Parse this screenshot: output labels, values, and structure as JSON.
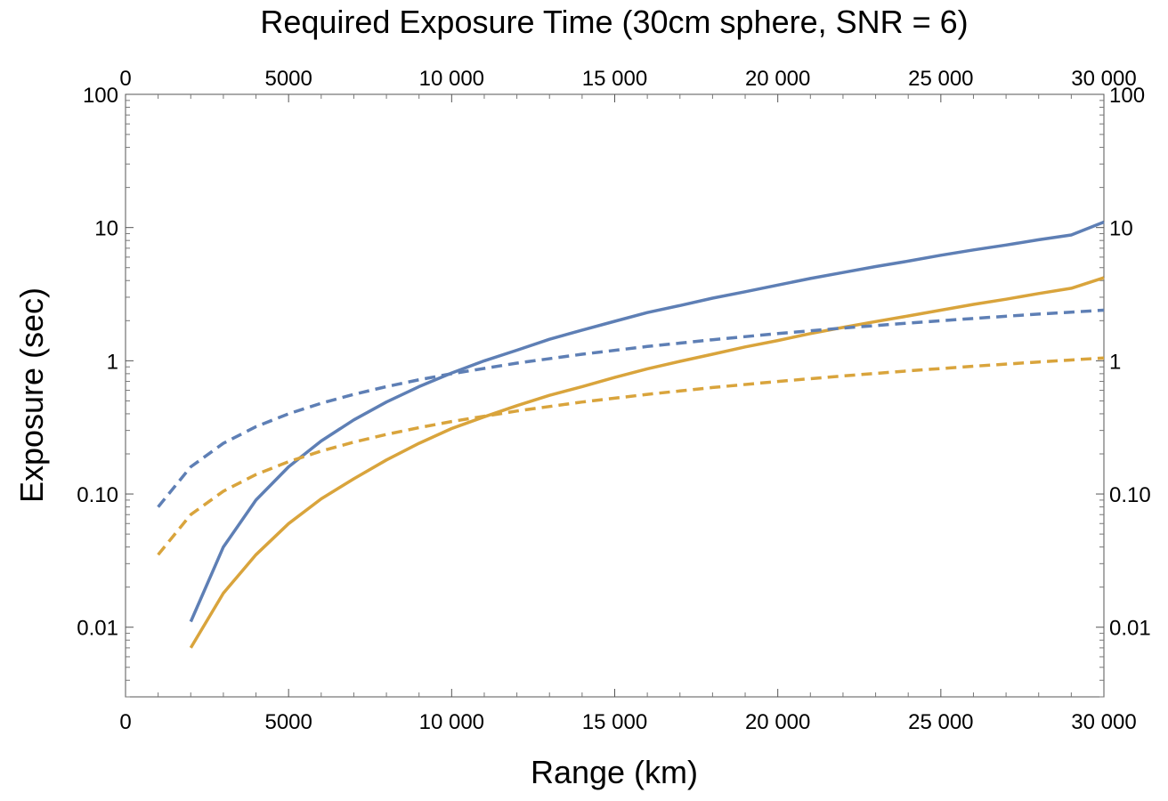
{
  "chart_data": {
    "type": "line",
    "title": "Required Exposure Time (30cm sphere, SNR = 6)",
    "xlabel": "Range (km)",
    "ylabel": "Exposure (sec)",
    "xlim": [
      0,
      30000
    ],
    "ylim": [
      0.003,
      100
    ],
    "yscale": "log",
    "grid": false,
    "frame_ticks_all_sides": true,
    "x_ticks": [
      {
        "value": 0,
        "label": "0"
      },
      {
        "value": 5000,
        "label": "5000"
      },
      {
        "value": 10000,
        "label": "10 000"
      },
      {
        "value": 15000,
        "label": "15 000"
      },
      {
        "value": 20000,
        "label": "20 000"
      },
      {
        "value": 25000,
        "label": "25 000"
      },
      {
        "value": 30000,
        "label": "30 000"
      }
    ],
    "y_ticks": [
      {
        "value": 0.01,
        "label": "0.01"
      },
      {
        "value": 0.1,
        "label": "0.10"
      },
      {
        "value": 1,
        "label": "1"
      },
      {
        "value": 10,
        "label": "10"
      },
      {
        "value": 100,
        "label": "100"
      }
    ],
    "series": [
      {
        "color": "#5e7fb5",
        "dash": "solid",
        "x": [
          2000,
          3000,
          4000,
          5000,
          6000,
          7000,
          8000,
          9000,
          10000,
          11000,
          12000,
          13000,
          14000,
          15000,
          16000,
          17000,
          18000,
          19000,
          20000,
          21000,
          22000,
          23000,
          24000,
          25000,
          26000,
          27000,
          28000,
          29000,
          30000
        ],
        "y": [
          0.011,
          0.04,
          0.09,
          0.16,
          0.25,
          0.36,
          0.49,
          0.64,
          0.81,
          1.0,
          1.2,
          1.45,
          1.7,
          1.98,
          2.3,
          2.6,
          2.95,
          3.3,
          3.7,
          4.15,
          4.6,
          5.1,
          5.6,
          6.2,
          6.8,
          7.4,
          8.1,
          8.8,
          11.0
        ]
      },
      {
        "color": "#d9a43c",
        "dash": "solid",
        "x": [
          2000,
          3000,
          4000,
          5000,
          6000,
          7000,
          8000,
          9000,
          10000,
          11000,
          12000,
          13000,
          14000,
          15000,
          16000,
          17000,
          18000,
          19000,
          20000,
          21000,
          22000,
          23000,
          24000,
          25000,
          26000,
          27000,
          28000,
          29000,
          30000
        ],
        "y": [
          0.007,
          0.018,
          0.035,
          0.06,
          0.092,
          0.13,
          0.18,
          0.24,
          0.31,
          0.38,
          0.46,
          0.55,
          0.64,
          0.75,
          0.87,
          0.99,
          1.12,
          1.27,
          1.42,
          1.6,
          1.78,
          1.97,
          2.17,
          2.4,
          2.65,
          2.9,
          3.2,
          3.5,
          4.2
        ]
      },
      {
        "color": "#5e7fb5",
        "dash": "dashed",
        "x": [
          1000,
          2000,
          3000,
          4000,
          5000,
          6000,
          7000,
          8000,
          9000,
          10000,
          12000,
          14000,
          16000,
          18000,
          20000,
          22000,
          24000,
          26000,
          28000,
          30000
        ],
        "y": [
          0.08,
          0.16,
          0.24,
          0.32,
          0.4,
          0.48,
          0.56,
          0.64,
          0.72,
          0.8,
          0.96,
          1.12,
          1.28,
          1.44,
          1.6,
          1.76,
          1.92,
          2.08,
          2.24,
          2.4
        ]
      },
      {
        "color": "#d9a43c",
        "dash": "dashed",
        "x": [
          1000,
          2000,
          3000,
          4000,
          5000,
          6000,
          7000,
          8000,
          9000,
          10000,
          12000,
          14000,
          16000,
          18000,
          20000,
          22000,
          24000,
          26000,
          28000,
          30000
        ],
        "y": [
          0.035,
          0.07,
          0.105,
          0.14,
          0.175,
          0.21,
          0.245,
          0.28,
          0.315,
          0.35,
          0.42,
          0.49,
          0.56,
          0.63,
          0.7,
          0.77,
          0.84,
          0.91,
          0.98,
          1.05
        ]
      }
    ]
  }
}
